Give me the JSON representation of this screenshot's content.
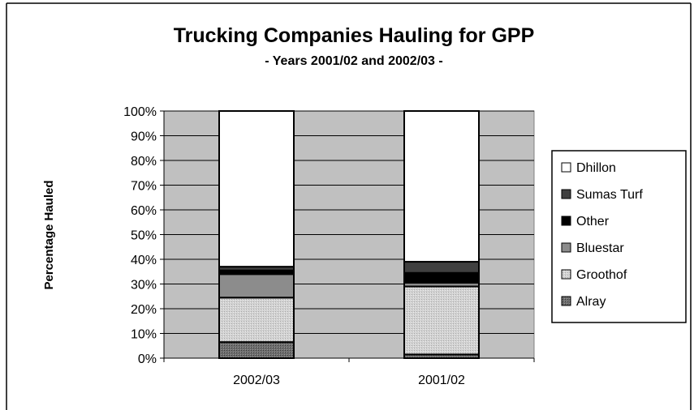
{
  "chart_data": {
    "type": "bar",
    "stacked": true,
    "percent_stacked": true,
    "title": "Trucking Companies Hauling for GPP",
    "subtitle": "- Years 2001/02 and 2002/03 -",
    "xlabel": "",
    "ylabel": "Percentage Hauled",
    "ylim": [
      0,
      100
    ],
    "yticks": [
      "0%",
      "10%",
      "20%",
      "30%",
      "40%",
      "50%",
      "60%",
      "70%",
      "80%",
      "90%",
      "100%"
    ],
    "grid": true,
    "legend_position": "right",
    "categories": [
      "2002/03",
      "2001/02"
    ],
    "series": [
      {
        "name": "Alray",
        "values": [
          6.5,
          1.5
        ],
        "color": "#5a5a5a",
        "pattern": "dots-dark"
      },
      {
        "name": "Groothof",
        "values": [
          18,
          27.5
        ],
        "color": "#c8c8c8",
        "pattern": "dots-light"
      },
      {
        "name": "Bluestar",
        "values": [
          9.5,
          1.5
        ],
        "color": "#8c8c8c",
        "pattern": "solid"
      },
      {
        "name": "Other",
        "values": [
          1.5,
          4
        ],
        "color": "#000000",
        "pattern": "solid"
      },
      {
        "name": "Sumas Turf",
        "values": [
          1.5,
          4.5
        ],
        "color": "#404040",
        "pattern": "solid"
      },
      {
        "name": "Dhillon",
        "values": [
          63,
          61
        ],
        "color": "#ffffff",
        "pattern": "solid"
      }
    ],
    "legend_order": [
      "Dhillon",
      "Sumas Turf",
      "Other",
      "Bluestar",
      "Groothof",
      "Alray"
    ],
    "plot_background": "#c0c0c0"
  }
}
